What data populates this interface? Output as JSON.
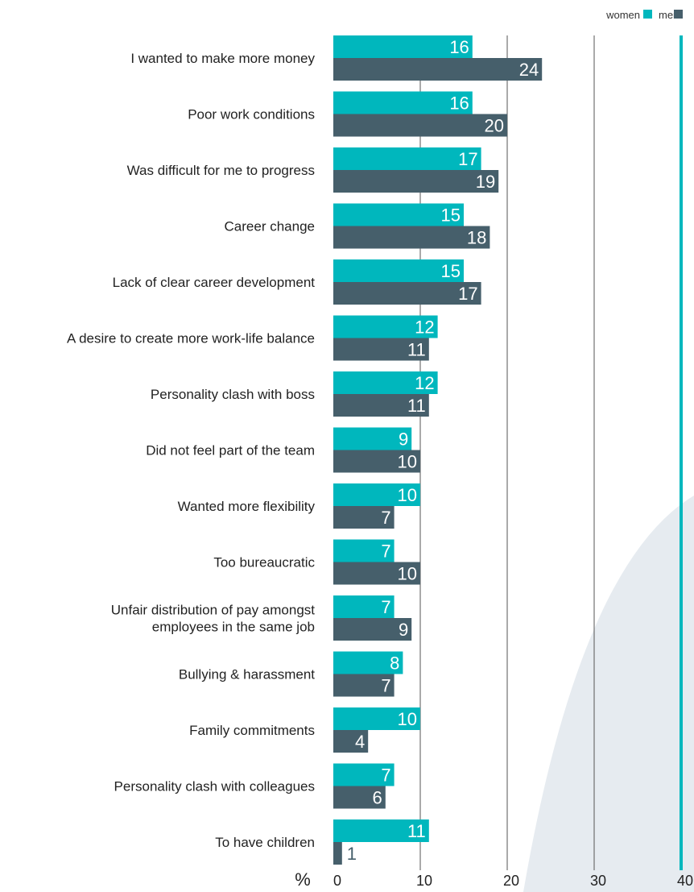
{
  "chart_data": {
    "type": "bar",
    "orientation": "horizontal",
    "unit_label": "%",
    "categories": [
      "I wanted to make more money",
      "Poor work conditions",
      "Was difficult for me to progress",
      "Career change",
      "Lack of clear career development",
      "A desire to create more work-life balance",
      "Personality clash with boss",
      "Did not feel part of the team",
      "Wanted more flexibility",
      "Too bureaucratic",
      "Unfair distribution of pay amongst\nemployees in the same job",
      "Bullying & harassment",
      "Family commitments",
      "Personality clash with colleagues",
      "To have children"
    ],
    "series": [
      {
        "name": "women",
        "color": "#00b7bd",
        "values": [
          16,
          16,
          17,
          15,
          15,
          12,
          12,
          9,
          10,
          7,
          7,
          8,
          10,
          7,
          11
        ]
      },
      {
        "name": "men",
        "color": "#465f6b",
        "values": [
          24,
          20,
          19,
          18,
          17,
          11,
          11,
          10,
          7,
          10,
          9,
          7,
          4,
          6,
          1
        ]
      }
    ],
    "xlim": [
      0,
      40
    ],
    "x_ticks": [
      0,
      10,
      20,
      30,
      40
    ],
    "grid": true,
    "legend_position": "top-right",
    "colors": {
      "background_shape": "#e6ebf0",
      "gridline": "#555555",
      "axis_highlight": "#00b7bd",
      "label_text": "#222222"
    }
  }
}
